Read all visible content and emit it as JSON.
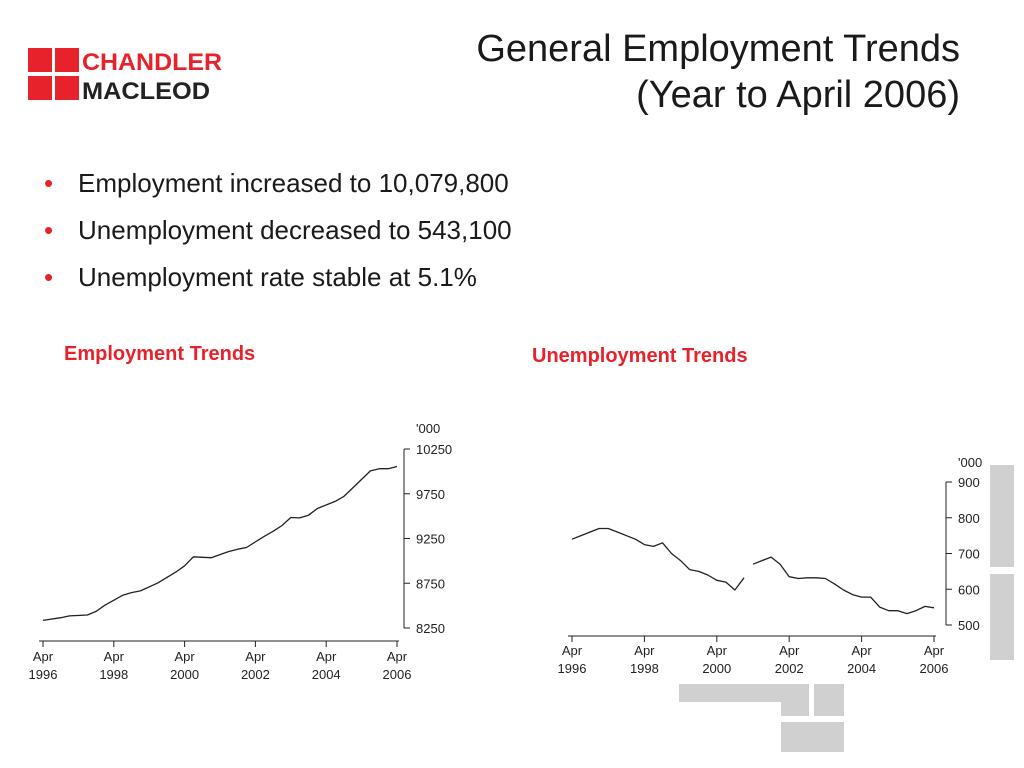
{
  "logo": {
    "line1": "CHANDLER",
    "line2": "MACLEOD"
  },
  "title": {
    "line1": "General Employment Trends",
    "line2": "(Year to April 2006)"
  },
  "bullets": [
    "Employment increased to 10,079,800",
    "Unemployment decreased to 543,100",
    "Unemployment rate stable at 5.1%"
  ],
  "colors": {
    "brand_red": "#e8222b",
    "line": "#222222",
    "decoration_gray": "#d0d0d0"
  },
  "chart_data": [
    {
      "type": "line",
      "title": "Employment Trends",
      "unit": "'000",
      "y_ticks": [
        "10250",
        "9750",
        "9250",
        "8750",
        "8250"
      ],
      "ylim": [
        8250,
        10250
      ],
      "x_ticks": [
        {
          "label1": "Apr",
          "label2": "1996"
        },
        {
          "label1": "Apr",
          "label2": "1998"
        },
        {
          "label1": "Apr",
          "label2": "2000"
        },
        {
          "label1": "Apr",
          "label2": "2002"
        },
        {
          "label1": "Apr",
          "label2": "2004"
        },
        {
          "label1": "Apr",
          "label2": "2006"
        }
      ],
      "xlim": [
        1996.25,
        2006.25
      ],
      "series": [
        {
          "x": [
            1996.25,
            1996.75,
            1997.0,
            1997.5,
            1997.75,
            1998.0,
            1998.5,
            1998.75,
            1999.0,
            1999.5,
            1999.75,
            2000.0,
            2000.25,
            2000.5,
            2000.75,
            2001.0,
            2001.5,
            2001.75,
            2002.0,
            2002.5,
            2002.75,
            2003.0,
            2003.25,
            2003.5,
            2003.75,
            2004.0,
            2004.5,
            2004.75,
            2005.0,
            2005.5,
            2005.75,
            2006.0,
            2006.25
          ],
          "y": [
            8335,
            8365,
            8385,
            8395,
            8435,
            8505,
            8615,
            8645,
            8665,
            8755,
            8815,
            8875,
            8945,
            9045,
            9040,
            9035,
            9105,
            9130,
            9150,
            9275,
            9330,
            9395,
            9485,
            9480,
            9510,
            9585,
            9665,
            9720,
            9815,
            10005,
            10030,
            10030,
            10055
          ]
        }
      ]
    },
    {
      "type": "line",
      "title": "Unemployment Trends",
      "unit": "'000",
      "y_ticks": [
        "900",
        "800",
        "700",
        "600",
        "500"
      ],
      "ylim": [
        500,
        900
      ],
      "x_ticks": [
        {
          "label1": "Apr",
          "label2": "1996"
        },
        {
          "label1": "Apr",
          "label2": "1998"
        },
        {
          "label1": "Apr",
          "label2": "2000"
        },
        {
          "label1": "Apr",
          "label2": "2002"
        },
        {
          "label1": "Apr",
          "label2": "2004"
        },
        {
          "label1": "Apr",
          "label2": "2006"
        }
      ],
      "xlim": [
        1996.25,
        2006.25
      ],
      "series": [
        {
          "segments": [
            {
              "x": [
                1996.25,
                1996.5,
                1997.0,
                1997.25,
                1997.5,
                1998.0,
                1998.25,
                1998.5,
                1998.75,
                1999.0,
                1999.25,
                1999.5,
                1999.75,
                2000.0,
                2000.25,
                2000.5,
                2000.75,
                2001.0
              ],
              "y": [
                740,
                750,
                770,
                770,
                760,
                740,
                725,
                720,
                730,
                700,
                680,
                655,
                650,
                640,
                625,
                620,
                598,
                632
              ]
            },
            {
              "x": [
                2001.25,
                2001.5,
                2001.75,
                2002.0,
                2002.25,
                2002.5,
                2002.75,
                2003.0,
                2003.25,
                2003.5,
                2003.75,
                2004.0,
                2004.25,
                2004.5,
                2004.75,
                2005.0,
                2005.25,
                2005.5,
                2005.75,
                2006.0,
                2006.25
              ],
              "y": [
                670,
                680,
                690,
                670,
                635,
                630,
                632,
                632,
                630,
                615,
                598,
                585,
                578,
                578,
                550,
                540,
                540,
                532,
                540,
                552,
                548
              ]
            }
          ]
        }
      ]
    }
  ]
}
